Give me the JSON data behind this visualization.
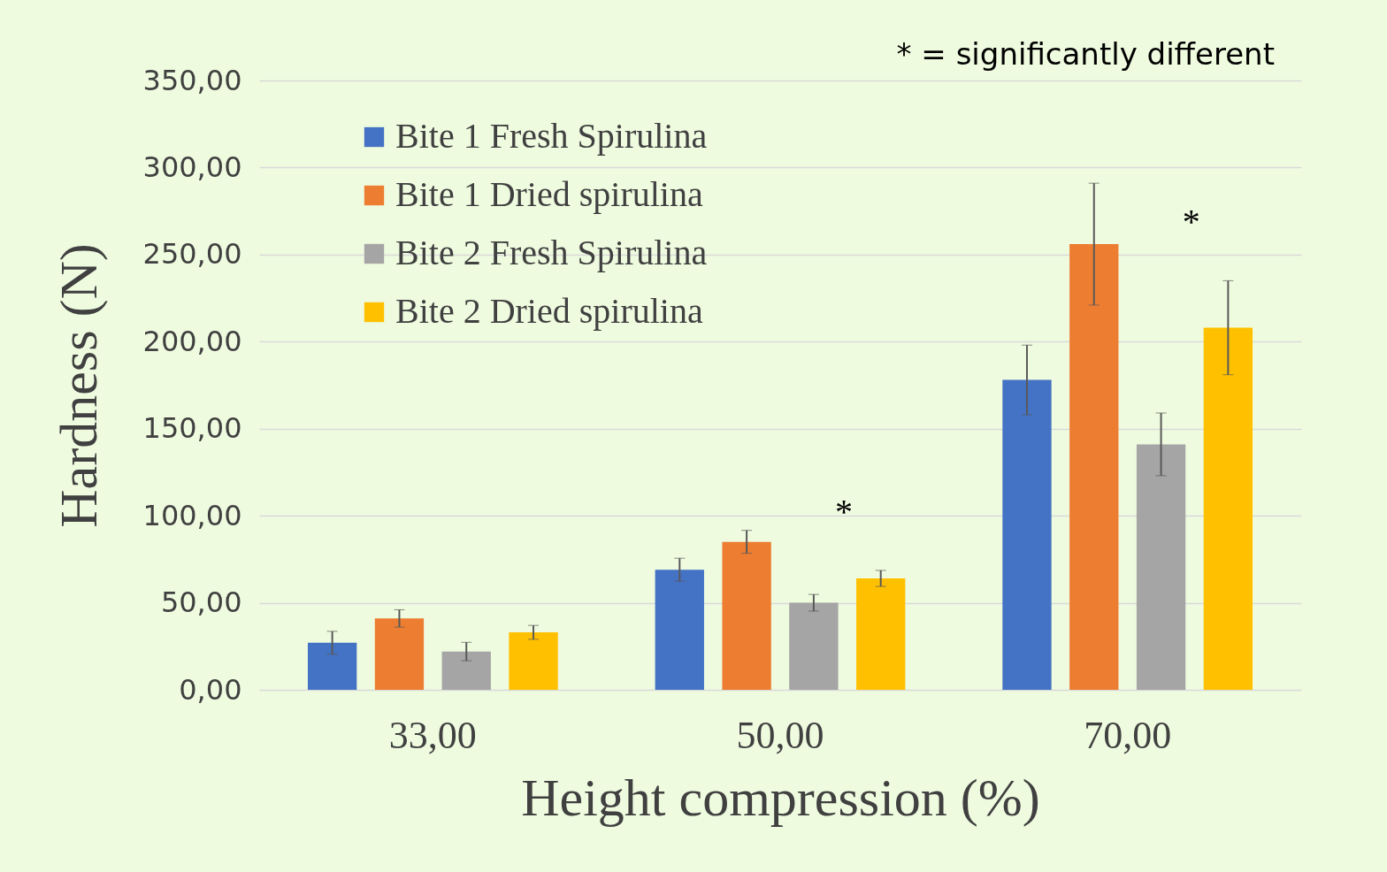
{
  "chart_data": {
    "type": "bar",
    "xlabel": "Height compression (%)",
    "ylabel": "Hardness (N)",
    "categories": [
      "33,00",
      "50,00",
      "70,00"
    ],
    "series": [
      {
        "name": "Bite 1 Fresh Spirulina",
        "color": "#4472c4",
        "values": [
          27,
          69,
          178
        ],
        "errors": [
          6.6,
          6.6,
          20
        ]
      },
      {
        "name": "Bite 1 Dried spirulina",
        "color": "#ed7d31",
        "values": [
          41,
          85,
          256
        ],
        "errors": [
          5,
          6.6,
          35
        ]
      },
      {
        "name": "Bite 2 Fresh Spirulina",
        "color": "#a5a5a5",
        "values": [
          22,
          50,
          141
        ],
        "errors": [
          5.3,
          4.8,
          18
        ]
      },
      {
        "name": "Bite 2 Dried spirulina",
        "color": "#ffc000",
        "values": [
          33,
          64,
          208
        ],
        "errors": [
          4,
          4.6,
          27
        ]
      }
    ],
    "ylim": [
      0,
      350
    ],
    "yticks": [
      {
        "value": 0,
        "label": "0,00"
      },
      {
        "value": 50,
        "label": "50,00"
      },
      {
        "value": 100,
        "label": "100,00"
      },
      {
        "value": 150,
        "label": "150,00"
      },
      {
        "value": 200,
        "label": "200,00"
      },
      {
        "value": 250,
        "label": "250,00"
      },
      {
        "value": 300,
        "label": "300,00"
      },
      {
        "value": 350,
        "label": "350,00"
      }
    ],
    "grid": "y",
    "legend": "top left",
    "annotations": [
      "* = significantly different",
      "*",
      "*"
    ]
  }
}
